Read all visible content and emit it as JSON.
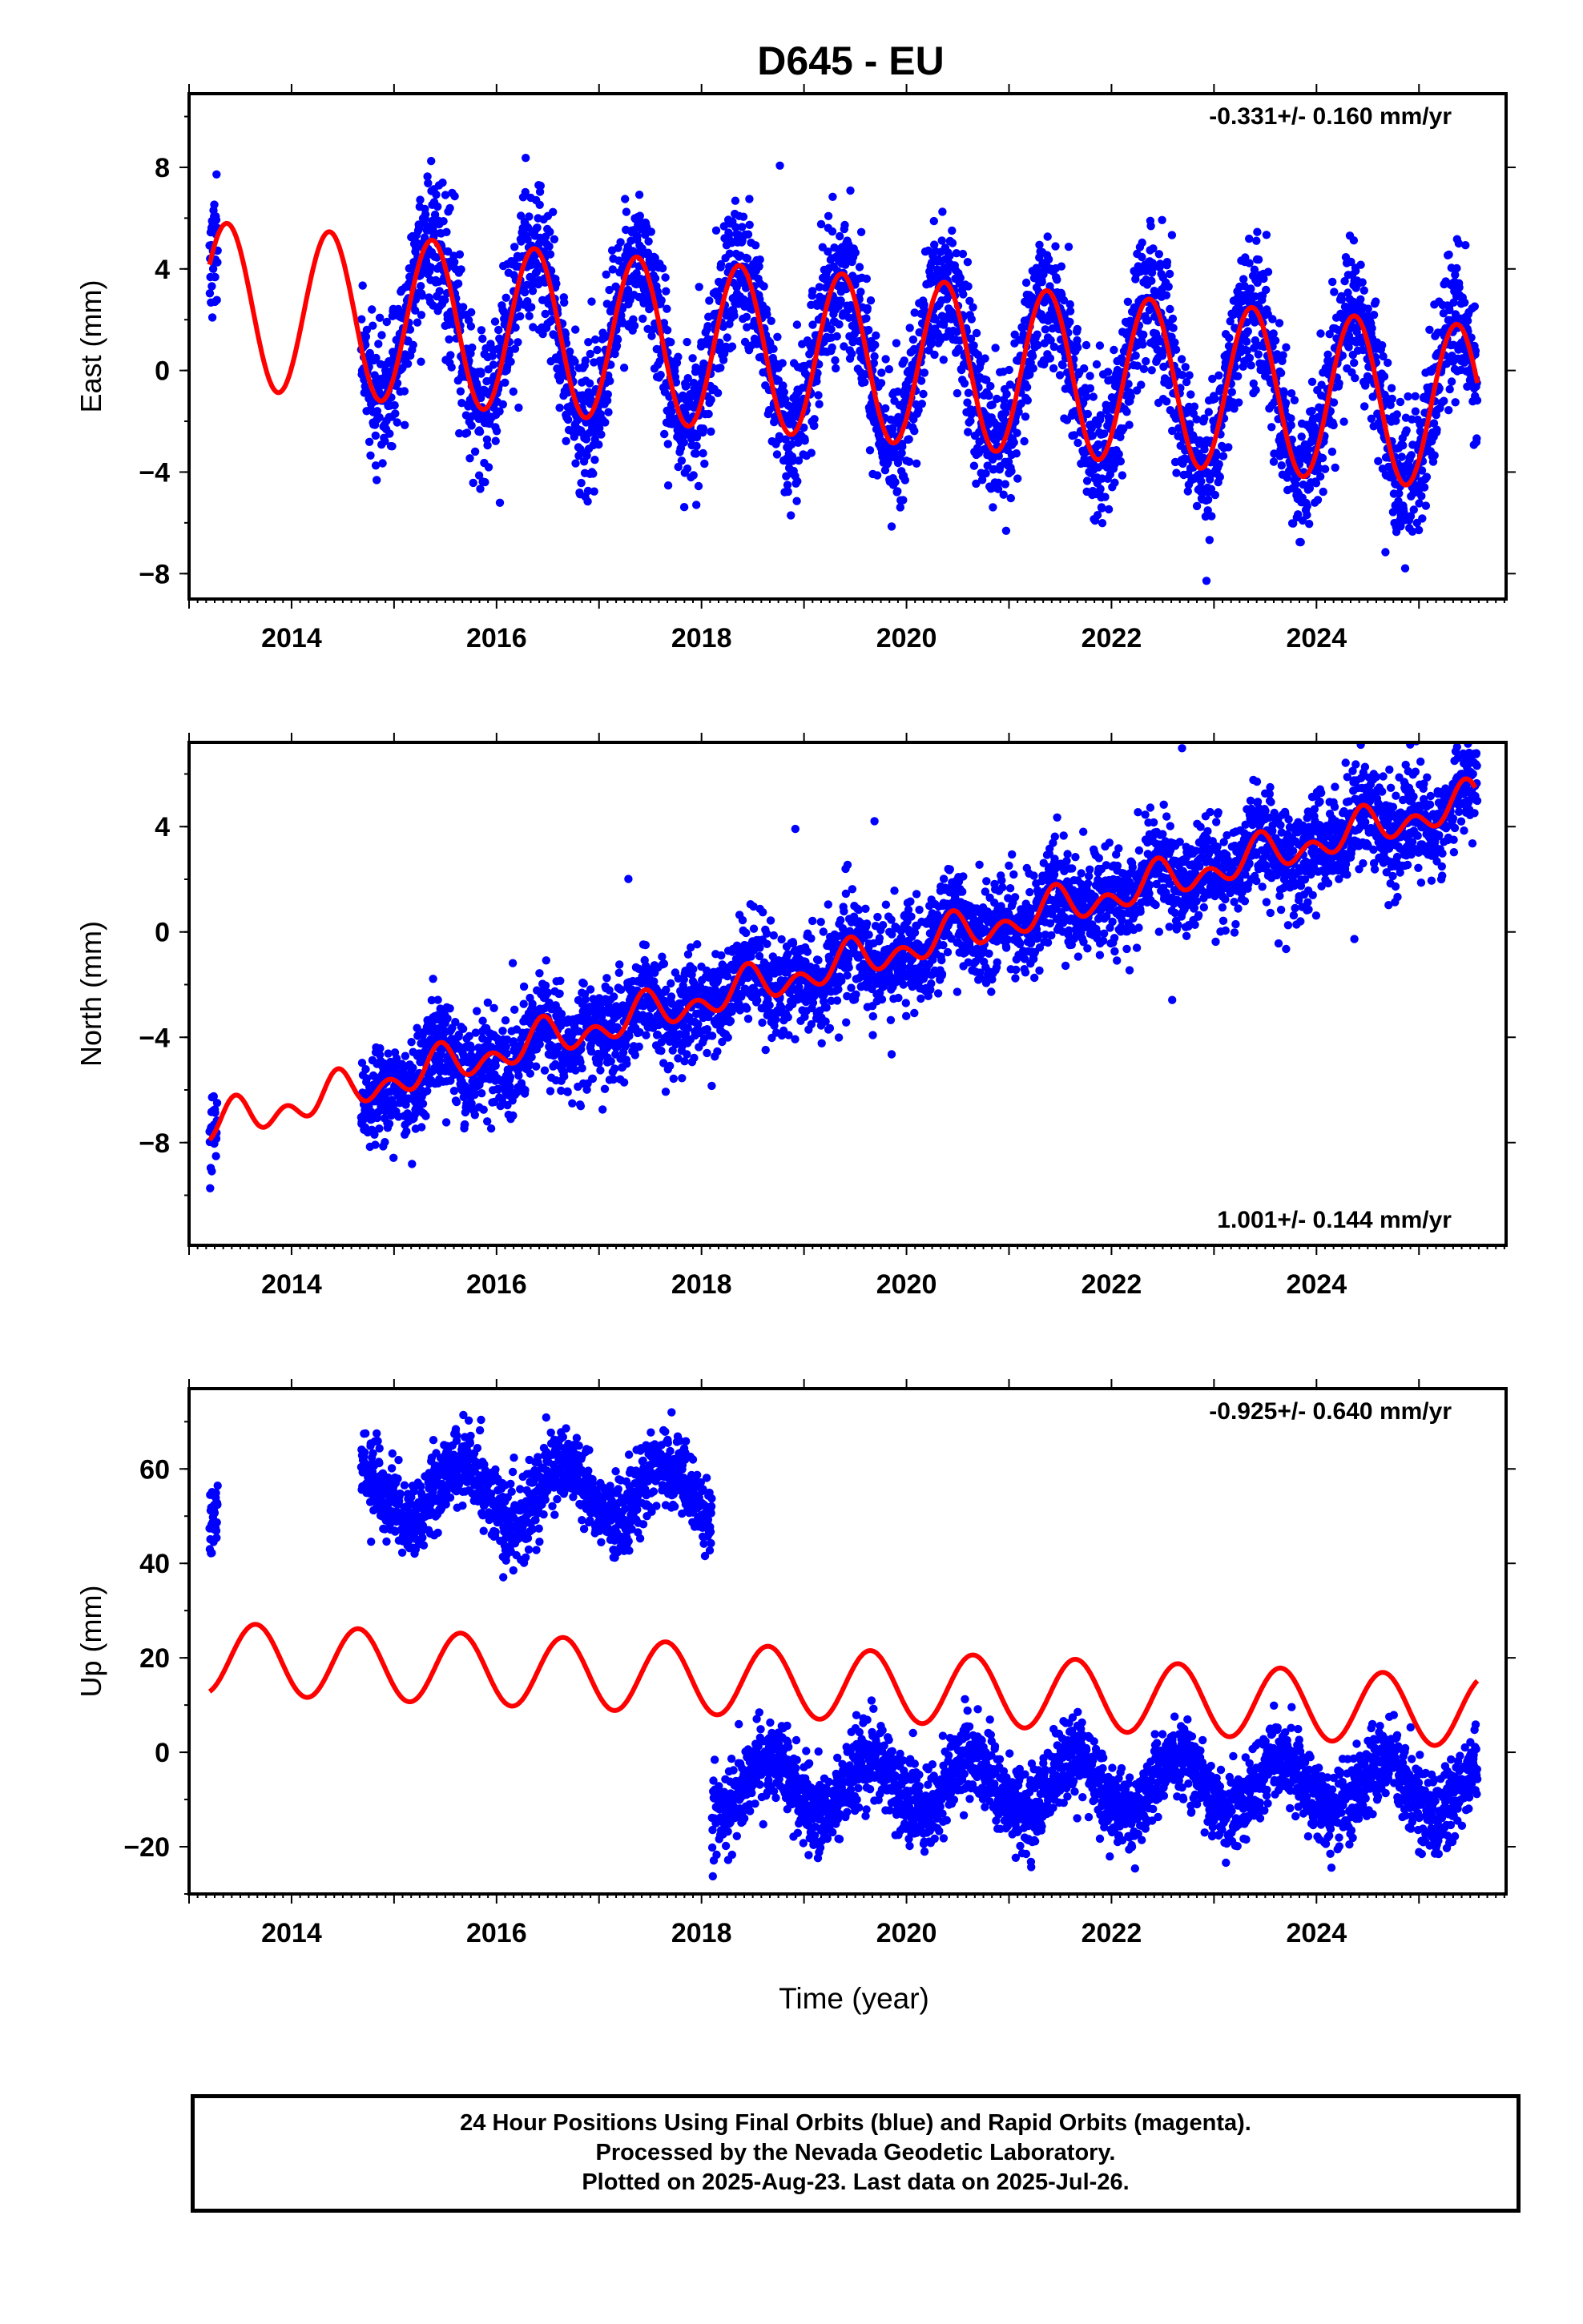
{
  "chart_data": {
    "title": "D645 - EU",
    "xlabel": "Time (year)",
    "x_ticks": [
      2014,
      2016,
      2018,
      2020,
      2022,
      2024
    ],
    "xlim": [
      2013.0,
      2025.85
    ],
    "colors": {
      "observations": "#0000ff",
      "model": "#ff0000"
    },
    "panels": [
      {
        "type": "scatter",
        "name": "east",
        "ylabel": "East (mm)",
        "ylim": [
          -9.0,
          10.9
        ],
        "y_ticks": [
          8,
          4,
          0,
          -4,
          -8
        ],
        "rate_label": "-0.331+/- 0.160 mm/yr",
        "rate_position": "top-right",
        "model": {
          "type": "line",
          "offset": 2.6,
          "trend": -0.331,
          "t0": 2013.2,
          "annual_amplitude": 3.25,
          "peak": 2013.37,
          "x_start": 2013.2,
          "x_end": 2025.57
        },
        "observations": {
          "type": "scatter",
          "segments": [
            [
              2013.2,
              2013.28
            ],
            [
              2014.68,
              2025.57
            ]
          ],
          "noise": 1.35,
          "outlier_rate": 0.01
        }
      },
      {
        "type": "scatter",
        "name": "north",
        "ylabel": "North (mm)",
        "ylim": [
          -11.9,
          7.2
        ],
        "y_ticks": [
          4,
          0,
          -4,
          -8
        ],
        "rate_label": "1.001+/- 0.144 mm/yr",
        "rate_position": "bottom-right",
        "model": {
          "type": "line",
          "offset": -7.4,
          "trend": 1.001,
          "t0": 2013.2,
          "annual_amplitude": 0.45,
          "peak": 2013.45,
          "semiannual_amplitude": 0.5,
          "semiannual_peak": 2013.45,
          "x_start": 2013.2,
          "x_end": 2025.55
        },
        "observations": {
          "type": "scatter",
          "segments": [
            [
              2013.2,
              2013.28
            ],
            [
              2014.68,
              2025.57
            ]
          ],
          "noise": 0.95,
          "outlier_rate": 0.01
        }
      },
      {
        "type": "scatter",
        "name": "up",
        "ylabel": "Up (mm)",
        "ylim": [
          -30.0,
          77.0
        ],
        "y_ticks": [
          60,
          40,
          20,
          0,
          -20
        ],
        "rate_label": "-0.925+/- 0.640 mm/yr",
        "rate_position": "top-right",
        "model": {
          "type": "line",
          "offset": 20.0,
          "trend": -0.925,
          "t0": 2013.2,
          "annual_amplitude": 7.5,
          "peak": 2013.65,
          "x_start": 2013.2,
          "x_end": 2025.57
        },
        "observations": {
          "type": "scatter",
          "segments": [
            [
              2013.2,
              2013.28
            ],
            [
              2014.68,
              2018.12
            ],
            [
              2018.12,
              2025.57
            ]
          ],
          "offset_before_2018.1": 55.0,
          "offset_after_2018.1": -7.0,
          "annual_amplitude": 6.0,
          "noise": 4.2
        }
      }
    ]
  },
  "footer": {
    "line1": "24 Hour Positions Using Final Orbits (blue) and Rapid Orbits (magenta).",
    "line2": "Processed by the Nevada Geodetic Laboratory.",
    "line3": "Plotted on 2025-Aug-23. Last data on 2025-Jul-26."
  }
}
